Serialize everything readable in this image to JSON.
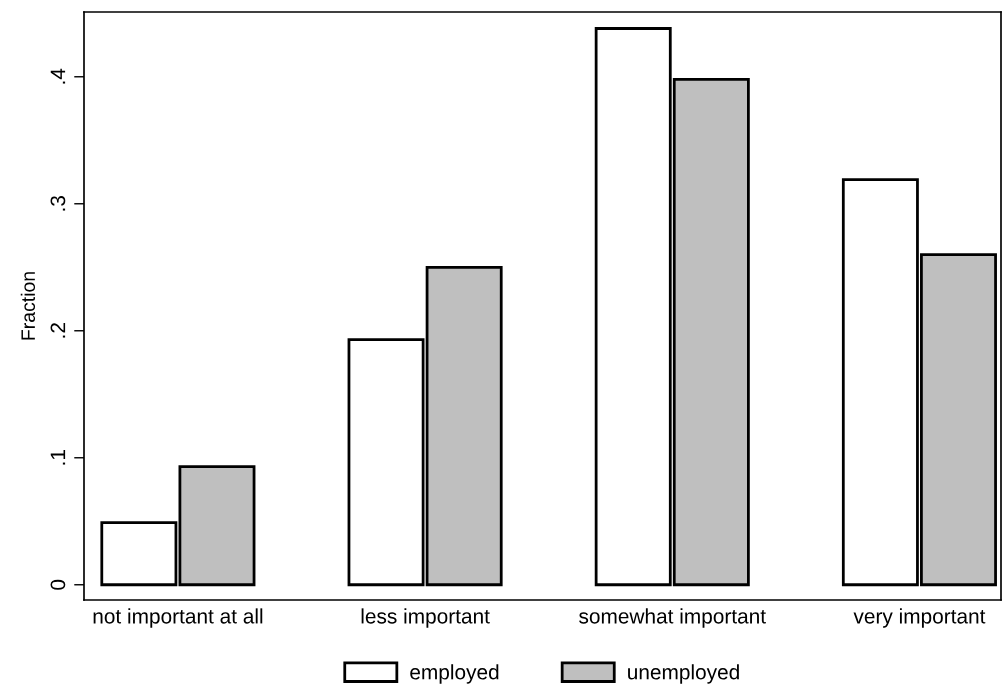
{
  "chart_data": {
    "type": "bar",
    "ylabel": "Fraction",
    "categories": [
      "not important at all",
      "less important",
      "somewhat important",
      "very important"
    ],
    "series": [
      {
        "name": "employed",
        "color": "#ffffff",
        "values": [
          0.049,
          0.193,
          0.438,
          0.319
        ]
      },
      {
        "name": "unemployed",
        "color": "#bfbfbf",
        "values": [
          0.093,
          0.25,
          0.398,
          0.26
        ]
      }
    ],
    "ylim": [
      -0.012,
      0.451
    ],
    "yticks": [
      {
        "value": 0,
        "label": "0"
      },
      {
        "value": 0.1,
        "label": ".1"
      },
      {
        "value": 0.2,
        "label": ".2"
      },
      {
        "value": 0.3,
        "label": ".3"
      },
      {
        "value": 0.4,
        "label": ".4"
      }
    ],
    "grid": false,
    "legend": "bottom"
  }
}
